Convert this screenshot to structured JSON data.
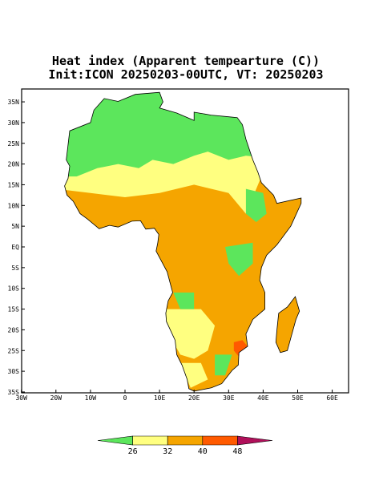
{
  "header": {
    "title": "Heat index (Apparent tempearture (C))",
    "subtitle": "Init:ICON 20250203-00UTC, VT: 20250203"
  },
  "map": {
    "lat_labels": [
      "35N",
      "30N",
      "25N",
      "20N",
      "15N",
      "10N",
      "5N",
      "EQ",
      "5S",
      "10S",
      "15S",
      "20S",
      "25S",
      "30S",
      "35S"
    ],
    "lon_labels": [
      "30W",
      "20W",
      "10W",
      "0",
      "10E",
      "20E",
      "30E",
      "40E",
      "50E",
      "60E"
    ]
  },
  "colorbar": {
    "levels": [
      26,
      32,
      40,
      48
    ],
    "colors": [
      "#5ce65c",
      "#ffff80",
      "#f5a500",
      "#ff5a00",
      "#b0105a"
    ]
  }
}
